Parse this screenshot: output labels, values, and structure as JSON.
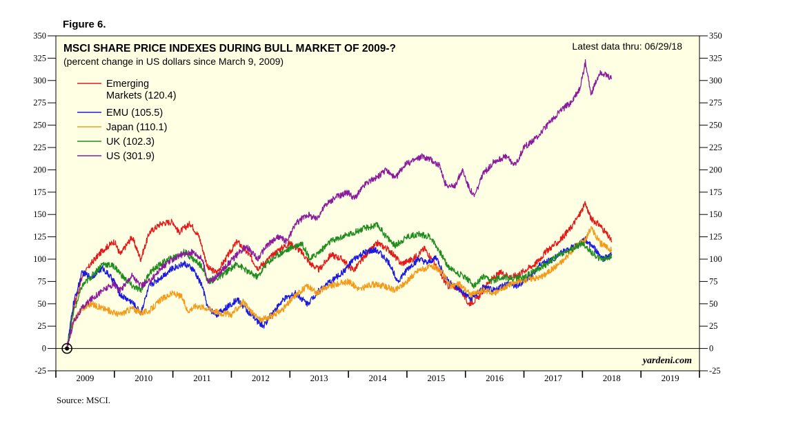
{
  "figure_label": "Figure 6.",
  "source": "Source: MSCI.",
  "watermark": "yardeni.com",
  "chart_data": {
    "type": "line",
    "title": "MSCI SHARE PRICE INDEXES DURING BULL MARKET OF 2009-?",
    "subtitle": "(percent change in US dollars since March 9, 2009)",
    "note": "Latest data thru: 06/29/18",
    "xlabel": "",
    "ylabel": "",
    "xlim": [
      2009.0,
      2020.0
    ],
    "ylim": [
      -25,
      350
    ],
    "yticks": [
      -25,
      0,
      25,
      50,
      75,
      100,
      125,
      150,
      175,
      200,
      225,
      250,
      275,
      300,
      325,
      350
    ],
    "ytick_labels": [
      "-25",
      "0",
      "25",
      "50",
      "75",
      "100",
      "125",
      "150",
      "175",
      "200",
      "225",
      "250",
      "275",
      "300",
      "325",
      "350"
    ],
    "year_labels": [
      "2009",
      "2010",
      "2011",
      "2012",
      "2013",
      "2014",
      "2015",
      "2016",
      "2017",
      "2018",
      "2019"
    ],
    "grid": false,
    "legend_position": "top-left",
    "start_marker": {
      "x": 2009.19,
      "y": 0
    },
    "series": [
      {
        "name": "Emerging Markets",
        "legend_line1": "Emerging",
        "legend_line2": "Markets (120.4)",
        "color": "#e41a1a",
        "x": [
          2009.19,
          2009.3,
          2009.45,
          2009.6,
          2009.8,
          2010.0,
          2010.1,
          2010.3,
          2010.45,
          2010.6,
          2010.8,
          2011.0,
          2011.1,
          2011.3,
          2011.45,
          2011.6,
          2011.75,
          2011.9,
          2012.1,
          2012.3,
          2012.45,
          2012.6,
          2012.8,
          2013.0,
          2013.2,
          2013.35,
          2013.5,
          2013.7,
          2013.9,
          2014.0,
          2014.1,
          2014.3,
          2014.5,
          2014.7,
          2014.9,
          2015.1,
          2015.3,
          2015.45,
          2015.6,
          2015.7,
          2015.9,
          2016.05,
          2016.2,
          2016.4,
          2016.6,
          2016.8,
          2016.95,
          2017.2,
          2017.4,
          2017.6,
          2017.8,
          2017.95,
          2018.05,
          2018.15,
          2018.3,
          2018.5
        ],
        "y": [
          0,
          45,
          80,
          95,
          110,
          120,
          105,
          125,
          100,
          130,
          140,
          142,
          130,
          140,
          125,
          90,
          85,
          100,
          120,
          105,
          90,
          98,
          110,
          118,
          108,
          95,
          88,
          105,
          100,
          92,
          88,
          105,
          118,
          110,
          95,
          100,
          112,
          98,
          80,
          70,
          68,
          50,
          55,
          75,
          85,
          80,
          85,
          95,
          110,
          120,
          135,
          150,
          162,
          145,
          138,
          120.4
        ]
      },
      {
        "name": "EMU",
        "legend_label": "EMU (105.5)",
        "color": "#1a1ae0",
        "x": [
          2009.19,
          2009.3,
          2009.45,
          2009.6,
          2009.8,
          2010.0,
          2010.1,
          2010.3,
          2010.45,
          2010.6,
          2010.8,
          2011.0,
          2011.2,
          2011.35,
          2011.5,
          2011.6,
          2011.75,
          2011.9,
          2012.1,
          2012.3,
          2012.45,
          2012.55,
          2012.7,
          2012.9,
          2013.1,
          2013.3,
          2013.5,
          2013.7,
          2013.9,
          2014.1,
          2014.3,
          2014.5,
          2014.7,
          2014.85,
          2015.0,
          2015.2,
          2015.35,
          2015.5,
          2015.65,
          2015.8,
          2016.0,
          2016.1,
          2016.3,
          2016.5,
          2016.7,
          2016.9,
          2017.1,
          2017.3,
          2017.5,
          2017.7,
          2017.9,
          2018.05,
          2018.2,
          2018.35,
          2018.5
        ],
        "y": [
          0,
          50,
          85,
          80,
          90,
          75,
          60,
          52,
          40,
          70,
          80,
          90,
          95,
          88,
          70,
          45,
          38,
          45,
          55,
          40,
          30,
          25,
          40,
          55,
          62,
          50,
          65,
          75,
          85,
          100,
          108,
          110,
          95,
          75,
          88,
          100,
          95,
          102,
          80,
          70,
          60,
          55,
          68,
          65,
          72,
          70,
          80,
          95,
          100,
          110,
          115,
          122,
          112,
          100,
          105.5
        ]
      },
      {
        "name": "Japan",
        "legend_label": "Japan (110.1)",
        "color": "#f39a1a",
        "x": [
          2009.19,
          2009.3,
          2009.45,
          2009.6,
          2009.8,
          2010.0,
          2010.1,
          2010.3,
          2010.45,
          2010.6,
          2010.8,
          2011.0,
          2011.15,
          2011.25,
          2011.4,
          2011.6,
          2011.8,
          2012.0,
          2012.2,
          2012.35,
          2012.5,
          2012.7,
          2012.9,
          2013.1,
          2013.3,
          2013.45,
          2013.6,
          2013.8,
          2014.0,
          2014.2,
          2014.4,
          2014.6,
          2014.8,
          2015.0,
          2015.2,
          2015.45,
          2015.6,
          2015.75,
          2015.9,
          2016.1,
          2016.3,
          2016.5,
          2016.7,
          2016.9,
          2017.1,
          2017.3,
          2017.5,
          2017.7,
          2017.9,
          2018.05,
          2018.15,
          2018.3,
          2018.5
        ],
        "y": [
          0,
          30,
          45,
          50,
          45,
          40,
          38,
          45,
          40,
          42,
          55,
          62,
          58,
          42,
          48,
          45,
          40,
          38,
          52,
          40,
          32,
          36,
          45,
          60,
          70,
          62,
          68,
          72,
          75,
          66,
          72,
          70,
          65,
          75,
          88,
          92,
          85,
          70,
          72,
          60,
          65,
          62,
          70,
          75,
          78,
          80,
          90,
          100,
          115,
          122,
          135,
          118,
          110.1
        ]
      },
      {
        "name": "UK",
        "legend_label": "UK (102.3)",
        "color": "#1e8c1e",
        "x": [
          2009.19,
          2009.3,
          2009.45,
          2009.6,
          2009.8,
          2010.0,
          2010.15,
          2010.3,
          2010.45,
          2010.6,
          2010.8,
          2011.0,
          2011.2,
          2011.35,
          2011.5,
          2011.6,
          2011.75,
          2011.9,
          2012.1,
          2012.3,
          2012.45,
          2012.6,
          2012.8,
          2013.0,
          2013.2,
          2013.35,
          2013.5,
          2013.7,
          2013.9,
          2014.1,
          2014.3,
          2014.5,
          2014.65,
          2014.8,
          2015.0,
          2015.2,
          2015.4,
          2015.55,
          2015.7,
          2015.85,
          2016.0,
          2016.15,
          2016.3,
          2016.45,
          2016.6,
          2016.8,
          2017.0,
          2017.2,
          2017.4,
          2017.6,
          2017.8,
          2018.0,
          2018.15,
          2018.3,
          2018.5
        ],
        "y": [
          0,
          40,
          70,
          80,
          95,
          92,
          80,
          70,
          65,
          85,
          95,
          102,
          108,
          100,
          92,
          75,
          78,
          85,
          95,
          85,
          80,
          95,
          105,
          112,
          118,
          100,
          108,
          120,
          125,
          130,
          135,
          138,
          125,
          115,
          125,
          128,
          125,
          110,
          92,
          85,
          80,
          70,
          80,
          75,
          80,
          78,
          80,
          88,
          95,
          105,
          110,
          118,
          108,
          100,
          102.3
        ]
      },
      {
        "name": "US",
        "legend_label": "US (301.9)",
        "color": "#8b1a9c",
        "x": [
          2009.19,
          2009.3,
          2009.45,
          2009.6,
          2009.8,
          2010.0,
          2010.1,
          2010.3,
          2010.45,
          2010.6,
          2010.8,
          2011.0,
          2011.15,
          2011.35,
          2011.5,
          2011.6,
          2011.75,
          2011.9,
          2012.1,
          2012.25,
          2012.45,
          2012.6,
          2012.8,
          2012.95,
          2013.1,
          2013.3,
          2013.45,
          2013.6,
          2013.8,
          2014.0,
          2014.1,
          2014.3,
          2014.5,
          2014.65,
          2014.8,
          2014.95,
          2015.1,
          2015.25,
          2015.4,
          2015.55,
          2015.65,
          2015.8,
          2015.95,
          2016.05,
          2016.15,
          2016.3,
          2016.5,
          2016.7,
          2016.85,
          2017.0,
          2017.2,
          2017.4,
          2017.6,
          2017.8,
          2017.95,
          2018.05,
          2018.15,
          2018.3,
          2018.5
        ],
        "y": [
          0,
          30,
          45,
          55,
          65,
          72,
          65,
          82,
          70,
          75,
          90,
          100,
          105,
          108,
          100,
          75,
          80,
          92,
          105,
          115,
          100,
          115,
          125,
          120,
          140,
          150,
          145,
          160,
          170,
          175,
          168,
          185,
          192,
          200,
          190,
          205,
          210,
          215,
          212,
          205,
          185,
          180,
          200,
          182,
          170,
          195,
          210,
          215,
          205,
          225,
          235,
          250,
          265,
          275,
          290,
          320,
          285,
          310,
          301.9
        ]
      }
    ]
  }
}
